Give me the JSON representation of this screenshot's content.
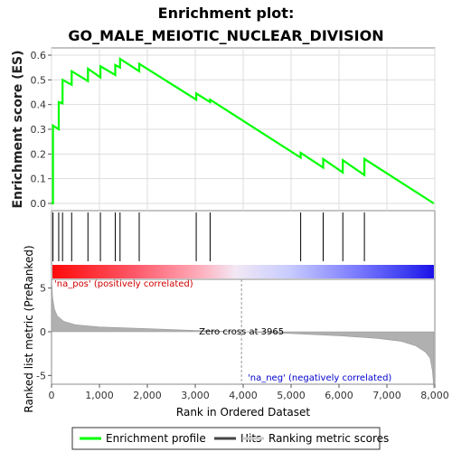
{
  "chart_data": {
    "type": "line",
    "title_line1": "Enrichment plot:",
    "title_line2": "GO_MALE_MEIOTIC_NUCLEAR_DIVISION",
    "xlabel": "Rank in Ordered Dataset",
    "ylabel_top": "Enrichment score (ES)",
    "ylabel_bottom": "Ranked list metric (PreRanked)",
    "xlim": [
      0,
      8000
    ],
    "es_ylim": [
      0,
      0.6
    ],
    "metric_ylim": [
      -6,
      6
    ],
    "x_ticks": [
      "0",
      "1,000",
      "2,000",
      "3,000",
      "4,000",
      "5,000",
      "6,000",
      "7,000",
      "8,000"
    ],
    "x_tick_values": [
      0,
      1000,
      2000,
      3000,
      4000,
      5000,
      6000,
      7000,
      8000
    ],
    "es_ticks": [
      "0.0",
      "0.1",
      "0.2",
      "0.3",
      "0.4",
      "0.5",
      "0.6"
    ],
    "es_tick_values": [
      0.0,
      0.1,
      0.2,
      0.3,
      0.4,
      0.5,
      0.6
    ],
    "metric_ticks": [
      "-5",
      "0",
      "5"
    ],
    "metric_tick_values": [
      -5,
      0,
      5
    ],
    "hits": [
      30,
      150,
      230,
      420,
      760,
      1020,
      1330,
      1430,
      1830,
      3020,
      3310,
      5200,
      5670,
      6080,
      6530
    ],
    "es_curve": {
      "x": [
        0,
        30,
        30,
        150,
        150,
        230,
        230,
        420,
        420,
        760,
        760,
        1020,
        1020,
        1330,
        1330,
        1430,
        1430,
        1830,
        1830,
        3020,
        3020,
        3310,
        3310,
        5200,
        5200,
        5670,
        5670,
        6080,
        6080,
        6530,
        6530,
        7980
      ],
      "y": [
        0.0,
        0.0,
        0.315,
        0.3,
        0.41,
        0.405,
        0.5,
        0.48,
        0.535,
        0.495,
        0.545,
        0.51,
        0.555,
        0.52,
        0.56,
        0.55,
        0.585,
        0.535,
        0.565,
        0.42,
        0.445,
        0.41,
        0.42,
        0.185,
        0.205,
        0.145,
        0.18,
        0.125,
        0.175,
        0.115,
        0.18,
        0.0
      ]
    },
    "metric_profile": {
      "x": [
        0,
        20,
        60,
        120,
        250,
        500,
        1000,
        2000,
        3000,
        3965,
        5000,
        6000,
        6800,
        7300,
        7600,
        7800,
        7900,
        7950,
        7980
      ],
      "y": [
        6.5,
        4.0,
        2.6,
        1.8,
        1.2,
        0.8,
        0.55,
        0.35,
        0.15,
        0.0,
        -0.2,
        -0.45,
        -0.75,
        -1.1,
        -1.6,
        -2.3,
        -3.0,
        -4.5,
        -6.5
      ]
    },
    "zero_cross": 3965,
    "zero_cross_label": "Zero cross at 3965",
    "pos_label": "'na_pos' (positively correlated)",
    "neg_label": "'na_neg' (negatively correlated)",
    "legend": [
      {
        "label": "Enrichment profile",
        "color": "#00ff00"
      },
      {
        "label": "Hits",
        "color": "#444444"
      },
      {
        "label": "Ranking metric scores",
        "color": "#cccccc"
      }
    ],
    "colors": {
      "es_line": "#00ff00",
      "hit_line": "#000000",
      "metric_fill": "#b0b0b0",
      "pos_text": "#d00000",
      "neg_text": "#0000cc"
    }
  }
}
